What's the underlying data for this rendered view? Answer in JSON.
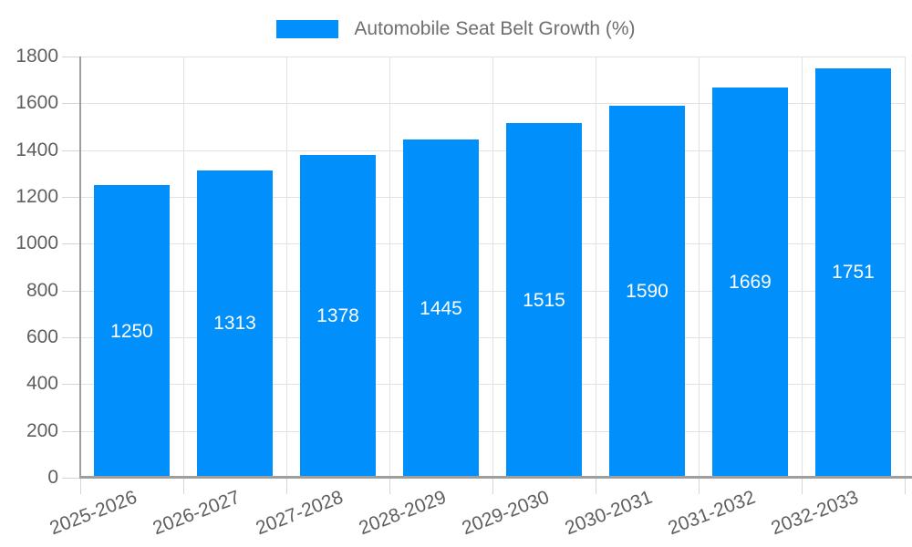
{
  "chart_data": {
    "type": "bar",
    "title": "Automobile Seat Belt Growth (%)",
    "categories": [
      "2025-2026",
      "2026-2027",
      "2027-2028",
      "2028-2029",
      "2029-2030",
      "2030-2031",
      "2031-2032",
      "2032-2033"
    ],
    "series": [
      {
        "name": "Automobile Seat Belt Growth (%)",
        "values": [
          1250,
          1313,
          1378,
          1445,
          1515,
          1590,
          1669,
          1751
        ]
      }
    ],
    "values": [
      1250,
      1313,
      1378,
      1445,
      1515,
      1590,
      1669,
      1751
    ],
    "xlabel": "",
    "ylabel": "",
    "ylim": [
      0,
      1800
    ],
    "ytick_step": 200,
    "yticks": [
      0,
      200,
      400,
      600,
      800,
      1000,
      1200,
      1400,
      1600,
      1800
    ],
    "grid": true,
    "legend_position": "top",
    "bar_value_labels_visible": true,
    "colors": {
      "bar": "#008FFB",
      "bar_label": "#FFFFFF",
      "gridline": "#E2E2E2",
      "tick": "#D6D6D6",
      "axis_line": "#9E9E9E",
      "axis_label": "#5F5F5F",
      "legend_text": "#6E6E6E",
      "background": "#FFFFFF"
    }
  }
}
